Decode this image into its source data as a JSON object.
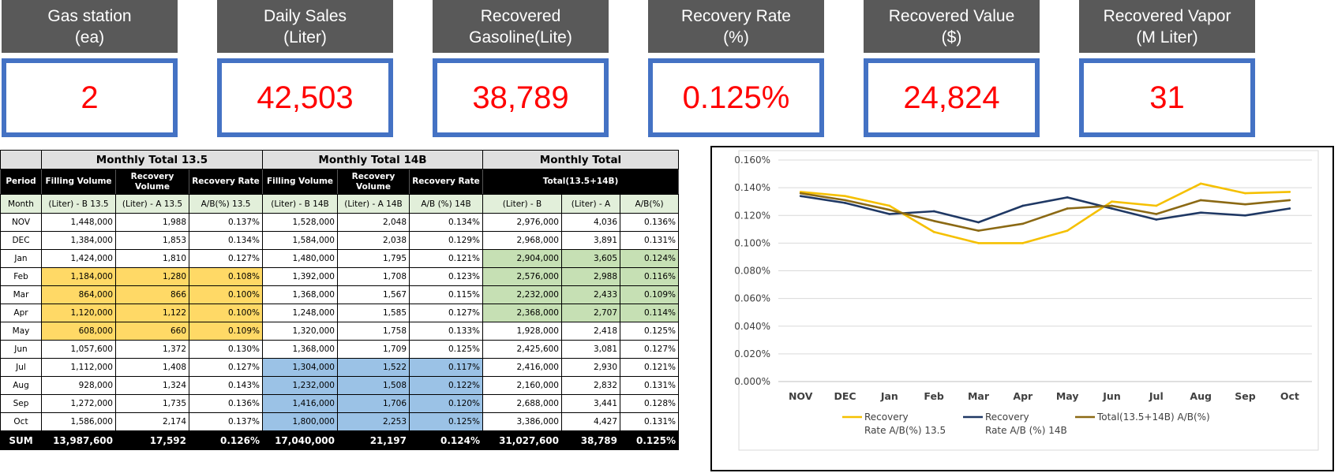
{
  "kpis": [
    {
      "line1": "Gas station",
      "line2": "(ea)",
      "value": "2"
    },
    {
      "line1": "Daily Sales",
      "line2": "(Liter)",
      "value": "42,503"
    },
    {
      "line1": "Recovered",
      "line2": "Gasoline(Lite)",
      "value": "38,789"
    },
    {
      "line1": "Recovery Rate",
      "line2": "(%)",
      "value": "0.125%"
    },
    {
      "line1": "Recovered Value",
      "line2": "($)",
      "value": "24,824"
    },
    {
      "line1": "Recovered Vapor",
      "line2": "(M Liter)",
      "value": "31"
    }
  ],
  "colors": {
    "kpi_header_bg": "#595959",
    "kpi_border": "#4472c4",
    "kpi_value": "#ff0000",
    "highlight_yellow": "#ffd966",
    "highlight_green": "#c6e0b4",
    "highlight_blue": "#9bc2e6"
  },
  "table": {
    "groups": [
      "Monthly Total 13.5",
      "Monthly Total 14B",
      "Monthly Total"
    ],
    "period_label": "Period",
    "headers": [
      "Filling Volume",
      "Recovery Volume",
      "Recovery Rate",
      "Filling Volume",
      "Recovery Volume",
      "Recovery Rate"
    ],
    "total_header": "Total(13.5+14B)",
    "unit_row": [
      "Month",
      "(Liter) - B 13.5",
      "(Liter) - A 13.5",
      "A/B(%) 13.5",
      "(Liter) - B 14B",
      "(Liter) - A 14B",
      "A/B (%) 14B",
      "(Liter) - B",
      "(Liter) - A",
      "A/B(%)"
    ],
    "rows": [
      [
        "NOV",
        "1,448,000",
        "1,988",
        "0.137%",
        "1,528,000",
        "2,048",
        "0.134%",
        "2,976,000",
        "4,036",
        "0.136%"
      ],
      [
        "DEC",
        "1,384,000",
        "1,853",
        "0.134%",
        "1,584,000",
        "2,038",
        "0.129%",
        "2,968,000",
        "3,891",
        "0.131%"
      ],
      [
        "Jan",
        "1,424,000",
        "1,810",
        "0.127%",
        "1,480,000",
        "1,795",
        "0.121%",
        "2,904,000",
        "3,605",
        "0.124%"
      ],
      [
        "Feb",
        "1,184,000",
        "1,280",
        "0.108%",
        "1,392,000",
        "1,708",
        "0.123%",
        "2,576,000",
        "2,988",
        "0.116%"
      ],
      [
        "Mar",
        "864,000",
        "866",
        "0.100%",
        "1,368,000",
        "1,567",
        "0.115%",
        "2,232,000",
        "2,433",
        "0.109%"
      ],
      [
        "Apr",
        "1,120,000",
        "1,122",
        "0.100%",
        "1,248,000",
        "1,585",
        "0.127%",
        "2,368,000",
        "2,707",
        "0.114%"
      ],
      [
        "May",
        "608,000",
        "660",
        "0.109%",
        "1,320,000",
        "1,758",
        "0.133%",
        "1,928,000",
        "2,418",
        "0.125%"
      ],
      [
        "Jun",
        "1,057,600",
        "1,372",
        "0.130%",
        "1,368,000",
        "1,709",
        "0.125%",
        "2,425,600",
        "3,081",
        "0.127%"
      ],
      [
        "Jul",
        "1,112,000",
        "1,408",
        "0.127%",
        "1,304,000",
        "1,522",
        "0.117%",
        "2,416,000",
        "2,930",
        "0.121%"
      ],
      [
        "Aug",
        "928,000",
        "1,324",
        "0.143%",
        "1,232,000",
        "1,508",
        "0.122%",
        "2,160,000",
        "2,832",
        "0.131%"
      ],
      [
        "Sep",
        "1,272,000",
        "1,735",
        "0.136%",
        "1,416,000",
        "1,706",
        "0.120%",
        "2,688,000",
        "3,441",
        "0.128%"
      ],
      [
        "Oct",
        "1,586,000",
        "2,174",
        "0.137%",
        "1,800,000",
        "2,253",
        "0.125%",
        "3,386,000",
        "4,427",
        "0.131%"
      ]
    ],
    "row_highlights": [
      "",
      "",
      "",
      "",
      "",
      "",
      "",
      "",
      "",
      "",
      "",
      "",
      "",
      "",
      "",
      "",
      "",
      "",
      "",
      "",
      "",
      "",
      "",
      "",
      "",
      "",
      "",
      "g",
      "g",
      "g",
      "",
      "y",
      "y",
      "y",
      "",
      "",
      "",
      "g",
      "g",
      "g",
      "",
      "y",
      "y",
      "y",
      "",
      "",
      "",
      "g",
      "g",
      "g",
      "",
      "y",
      "y",
      "y",
      "",
      "",
      "",
      "g",
      "g",
      "g",
      "",
      "y",
      "y",
      "y",
      "",
      "",
      "",
      "",
      "",
      "",
      "",
      "",
      "",
      "",
      "",
      "",
      "",
      "",
      "",
      "",
      "",
      "",
      "",
      "",
      "b",
      "b",
      "b",
      "",
      "",
      "",
      "",
      "",
      "",
      "",
      "b",
      "b",
      "b",
      "",
      "",
      "",
      "",
      "",
      "",
      "",
      "b",
      "b",
      "b",
      "",
      "",
      "",
      "",
      "",
      "",
      "",
      "b",
      "b",
      "b",
      "",
      "",
      ""
    ],
    "sum_row": [
      "SUM",
      "13,987,600",
      "17,592",
      "0.126%",
      "17,040,000",
      "21,197",
      "0.124%",
      "31,027,600",
      "38,789",
      "0.125%"
    ]
  },
  "chart_data": {
    "type": "line",
    "categories": [
      "NOV",
      "DEC",
      "Jan",
      "Feb",
      "Mar",
      "Apr",
      "May",
      "Jun",
      "Jul",
      "Aug",
      "Sep",
      "Oct"
    ],
    "series": [
      {
        "name_line1": "Recovery",
        "name_line2": "Rate A/B(%) 13.5",
        "color": "#f5c000",
        "values": [
          0.137,
          0.134,
          0.127,
          0.108,
          0.1,
          0.1,
          0.109,
          0.13,
          0.127,
          0.143,
          0.136,
          0.137
        ]
      },
      {
        "name_line1": "Recovery",
        "name_line2": "Rate A/B (%) 14B",
        "color": "#1f3864",
        "values": [
          0.134,
          0.129,
          0.121,
          0.123,
          0.115,
          0.127,
          0.133,
          0.125,
          0.117,
          0.122,
          0.12,
          0.125
        ]
      },
      {
        "name_line1": "Total(13.5+14B) A/B(%)",
        "name_line2": "",
        "color": "#8b6914",
        "values": [
          0.136,
          0.131,
          0.124,
          0.116,
          0.109,
          0.114,
          0.125,
          0.127,
          0.121,
          0.131,
          0.128,
          0.131
        ]
      }
    ],
    "y_ticks": [
      "0.000%",
      "0.020%",
      "0.040%",
      "0.060%",
      "0.080%",
      "0.100%",
      "0.120%",
      "0.140%",
      "0.160%"
    ],
    "ylim": [
      0,
      0.16
    ],
    "grid": true,
    "legend": "bottom"
  }
}
